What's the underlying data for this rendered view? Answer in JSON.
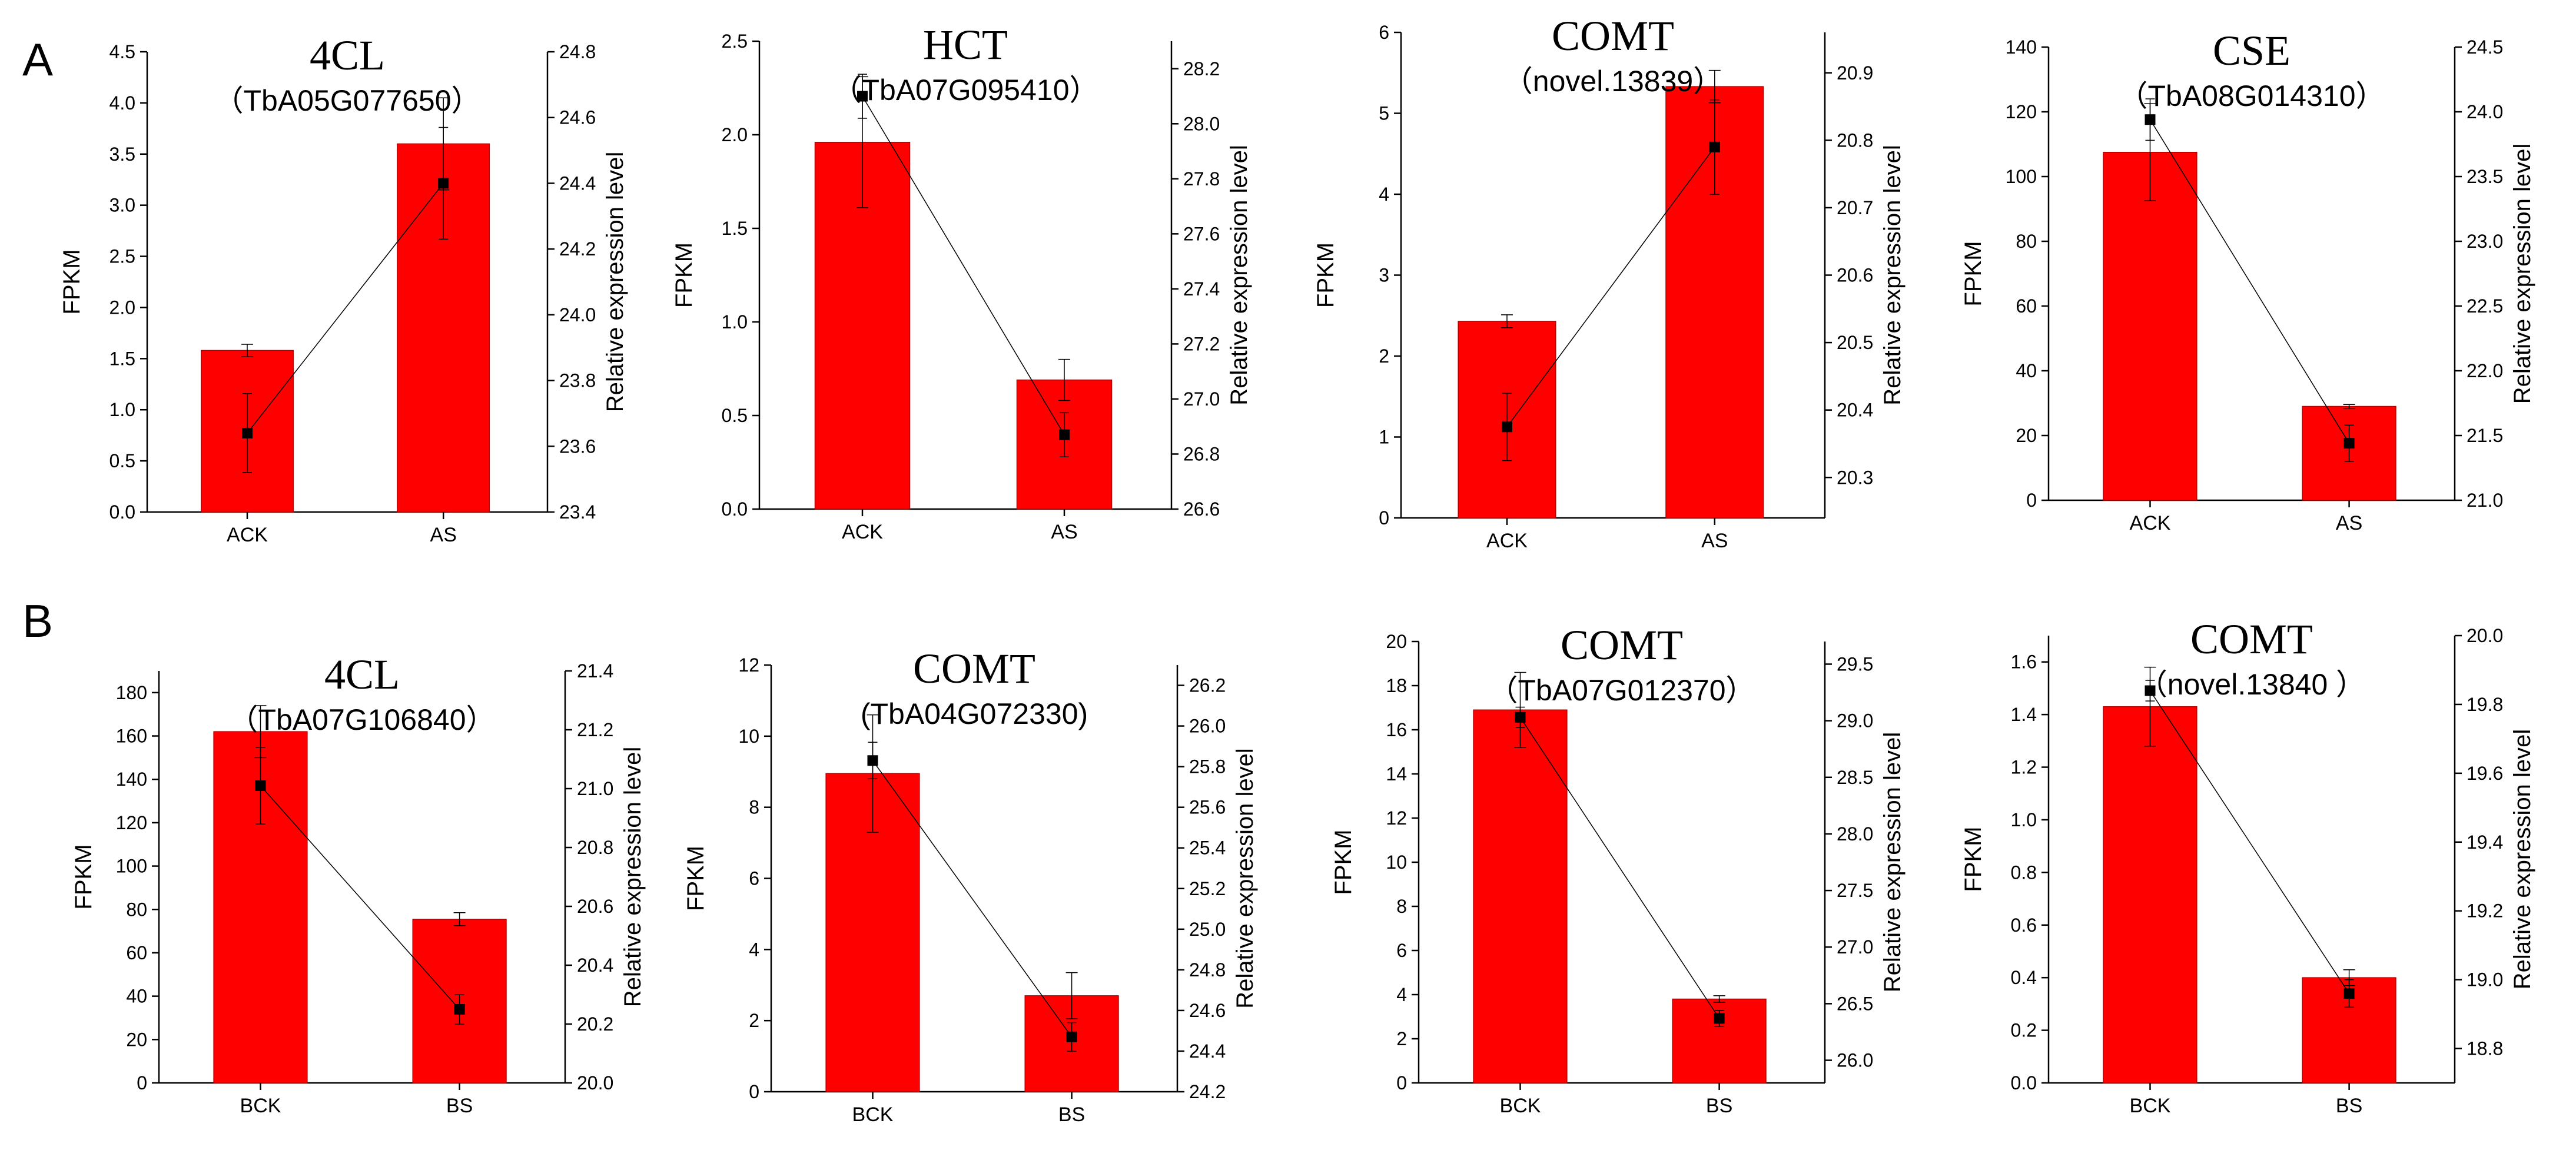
{
  "panels": [
    {
      "letter": "A"
    },
    {
      "letter": "B"
    }
  ],
  "chart_data": [
    {
      "type": "bar",
      "panel": "A",
      "gene": "4CL",
      "gene_id": "（TbA05G077650）",
      "categories": [
        "ACK",
        "AS"
      ],
      "bar_values": [
        1.58,
        3.6
      ],
      "bar_err": [
        0.06,
        0.45
      ],
      "line_values": [
        23.64,
        24.4
      ],
      "line_err": [
        0.12,
        0.17
      ],
      "ylabel": "FPKM",
      "y2label": "Relative expression level",
      "ylim": [
        0,
        4.5
      ],
      "yticks": [
        0,
        0.5,
        1,
        1.5,
        2,
        2.5,
        3,
        3.5,
        4,
        4.5
      ],
      "ytick_labels": [
        "0.0",
        "0.5",
        "1.0",
        "1.5",
        "2.0",
        "2.5",
        "3.0",
        "3.5",
        "4.0",
        "4.5"
      ],
      "y2lim": [
        23.4,
        24.8
      ],
      "y2ticks": [
        23.4,
        23.6,
        23.8,
        24,
        24.2,
        24.4,
        24.6,
        24.8
      ],
      "y2tick_labels": [
        "23.4",
        "23.6",
        "23.8",
        "24.0",
        "24.2",
        "24.4",
        "24.6",
        "24.8"
      ]
    },
    {
      "type": "bar",
      "panel": "A",
      "gene": "HCT",
      "gene_id": "（TbA07G095410）",
      "categories": [
        "ACK",
        "AS"
      ],
      "bar_values": [
        1.96,
        0.69
      ],
      "bar_err": [
        0.35,
        0.11
      ],
      "line_values": [
        28.1,
        26.87
      ],
      "line_err": [
        0.08,
        0.08
      ],
      "ylabel": "FPKM",
      "y2label": "Relative expression level",
      "ylim": [
        0,
        2.5
      ],
      "yticks": [
        0,
        0.5,
        1,
        1.5,
        2,
        2.5
      ],
      "ytick_labels": [
        "0.0",
        "0.5",
        "1.0",
        "1.5",
        "2.0",
        "2.5"
      ],
      "y2lim": [
        26.6,
        28.3
      ],
      "y2ticks": [
        26.6,
        26.8,
        27,
        27.2,
        27.4,
        27.6,
        27.8,
        28,
        28.2
      ],
      "y2tick_labels": [
        "26.6",
        "26.8",
        "27.0",
        "27.2",
        "27.4",
        "27.6",
        "27.8",
        "28.0",
        "28.2"
      ]
    },
    {
      "type": "bar",
      "panel": "A",
      "gene": "COMT",
      "gene_id": "（novel.13839）",
      "categories": [
        "ACK",
        "AS"
      ],
      "bar_values": [
        2.43,
        5.33
      ],
      "bar_err": [
        0.08,
        0.2
      ],
      "line_values": [
        20.375,
        20.79
      ],
      "line_err": [
        0.05,
        0.07
      ],
      "ylabel": "FPKM",
      "y2label": "Relative expression level",
      "ylim": [
        0,
        6
      ],
      "yticks": [
        0,
        1,
        2,
        3,
        4,
        5,
        6
      ],
      "ytick_labels": [
        "0",
        "1",
        "2",
        "3",
        "4",
        "5",
        "6"
      ],
      "y2lim": [
        20.24,
        20.96
      ],
      "y2ticks": [
        20.3,
        20.4,
        20.5,
        20.6,
        20.7,
        20.8,
        20.9
      ],
      "y2tick_labels": [
        "20.3",
        "20.4",
        "20.5",
        "20.6",
        "20.7",
        "20.8",
        "20.9"
      ]
    },
    {
      "type": "bar",
      "panel": "A",
      "gene": "CSE",
      "gene_id": "（TbA08G014310）",
      "categories": [
        "ACK",
        "AS"
      ],
      "bar_values": [
        107.5,
        29
      ],
      "bar_err": [
        15,
        0.6
      ],
      "line_values": [
        23.94,
        21.44
      ],
      "line_err": [
        0.16,
        0.14
      ],
      "ylabel": "FPKM",
      "y2label": "Relative expression level",
      "ylim": [
        0,
        140
      ],
      "yticks": [
        0,
        20,
        40,
        60,
        80,
        100,
        120,
        140
      ],
      "ytick_labels": [
        "0",
        "20",
        "40",
        "60",
        "80",
        "100",
        "120",
        "140"
      ],
      "y2lim": [
        21,
        24.5
      ],
      "y2ticks": [
        21,
        21.5,
        22,
        22.5,
        23,
        23.5,
        24,
        24.5
      ],
      "y2tick_labels": [
        "21.0",
        "21.5",
        "22.0",
        "22.5",
        "23.0",
        "23.5",
        "24.0",
        "24.5"
      ]
    },
    {
      "type": "bar",
      "panel": "B",
      "gene": "4CL",
      "gene_id": "（TbA07G106840）",
      "categories": [
        "BCK",
        "BS"
      ],
      "bar_values": [
        162,
        75.5
      ],
      "bar_err": [
        12,
        3
      ],
      "line_values": [
        21.01,
        20.25
      ],
      "line_err": [
        0.13,
        0.05
      ],
      "ylabel": "FPKM",
      "y2label": "Relative expression level",
      "ylim": [
        0,
        190
      ],
      "yticks": [
        0,
        20,
        40,
        60,
        80,
        100,
        120,
        140,
        160,
        180
      ],
      "ytick_labels": [
        "0",
        "20",
        "40",
        "60",
        "80",
        "100",
        "120",
        "140",
        "160",
        "180"
      ],
      "y2lim": [
        20,
        21.4
      ],
      "y2ticks": [
        20,
        20.2,
        20.4,
        20.6,
        20.8,
        21,
        21.2,
        21.4
      ],
      "y2tick_labels": [
        "20.0",
        "20.2",
        "20.4",
        "20.6",
        "20.8",
        "21.0",
        "21.2",
        "21.4"
      ]
    },
    {
      "type": "bar",
      "panel": "B",
      "gene": "COMT",
      "gene_id": "(TbA04G072330)",
      "categories": [
        "BCK",
        "BS"
      ],
      "bar_values": [
        8.95,
        2.7
      ],
      "bar_err": [
        1.65,
        0.65
      ],
      "line_values": [
        25.83,
        24.47
      ],
      "line_err": [
        0.09,
        0.07
      ],
      "ylabel": "FPKM",
      "y2label": "Relative expression level",
      "ylim": [
        0,
        12
      ],
      "yticks": [
        0,
        2,
        4,
        6,
        8,
        10,
        12
      ],
      "ytick_labels": [
        "0",
        "2",
        "4",
        "6",
        "8",
        "10",
        "12"
      ],
      "y2lim": [
        24.2,
        26.3
      ],
      "y2ticks": [
        24.2,
        24.4,
        24.6,
        24.8,
        25,
        25.2,
        25.4,
        25.6,
        25.8,
        26,
        26.2
      ],
      "y2tick_labels": [
        "24.2",
        "24.4",
        "24.6",
        "24.8",
        "25.0",
        "25.2",
        "25.4",
        "25.6",
        "25.8",
        "26.0",
        "26.2"
      ]
    },
    {
      "type": "bar",
      "panel": "B",
      "gene": "COMT",
      "gene_id": "（TbA07G012370）",
      "categories": [
        "BCK",
        "BS"
      ],
      "bar_values": [
        16.9,
        3.8
      ],
      "bar_err": [
        1.7,
        0.15
      ],
      "line_values": [
        29.03,
        26.37
      ],
      "line_err": [
        0.09,
        0.07
      ],
      "ylabel": "FPKM",
      "y2label": "Relative expression level",
      "ylim": [
        0,
        20
      ],
      "yticks": [
        0,
        2,
        4,
        6,
        8,
        10,
        12,
        14,
        16,
        18,
        20
      ],
      "ytick_labels": [
        "0",
        "2",
        "4",
        "6",
        "8",
        "10",
        "12",
        "14",
        "16",
        "18",
        "20"
      ],
      "y2lim": [
        25.8,
        29.7
      ],
      "y2ticks": [
        26,
        26.5,
        27,
        27.5,
        28,
        28.5,
        29,
        29.5
      ],
      "y2tick_labels": [
        "26.0",
        "26.5",
        "27.0",
        "27.5",
        "28.0",
        "28.5",
        "29.0",
        "29.5"
      ]
    },
    {
      "type": "bar",
      "panel": "B",
      "gene": "COMT",
      "gene_id": "（novel.13840 ）",
      "categories": [
        "BCK",
        "BS"
      ],
      "bar_values": [
        1.43,
        0.4
      ],
      "bar_err": [
        0.15,
        0.03
      ],
      "line_values": [
        19.84,
        18.96
      ],
      "line_err": [
        0.03,
        0.04
      ],
      "ylabel": "FPKM",
      "y2label": "Relative expression level",
      "ylim": [
        0,
        1.7
      ],
      "yticks": [
        0,
        0.2,
        0.4,
        0.6,
        0.8,
        1,
        1.2,
        1.4,
        1.6
      ],
      "ytick_labels": [
        "0.0",
        "0.2",
        "0.4",
        "0.6",
        "0.8",
        "1.0",
        "1.2",
        "1.4",
        "1.6"
      ],
      "y2lim": [
        18.7,
        20
      ],
      "y2ticks": [
        18.8,
        19,
        19.2,
        19.4,
        19.6,
        19.8,
        20
      ],
      "y2tick_labels": [
        "18.8",
        "19.0",
        "19.2",
        "19.4",
        "19.6",
        "19.8",
        "20.0"
      ]
    }
  ]
}
